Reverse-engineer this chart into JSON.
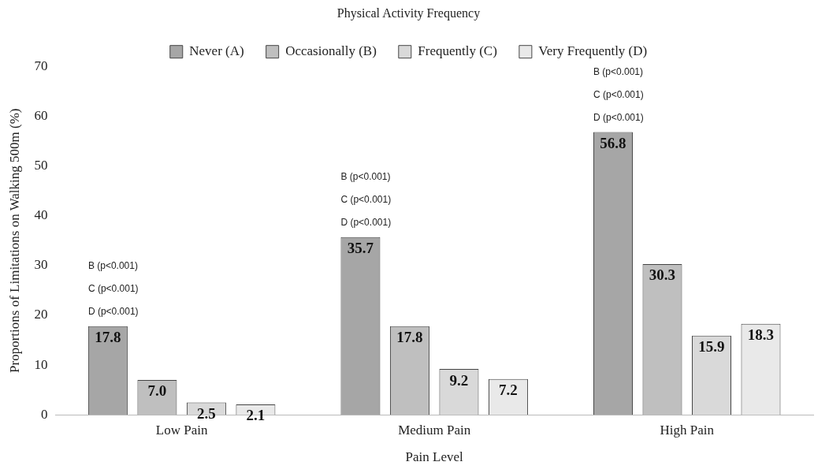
{
  "chart_data": {
    "type": "bar",
    "legend_title": "Physical Activity Frequency",
    "xlabel": "Pain Level",
    "ylabel": "Proportions of Limitations on Walking 500m (%)",
    "categories": [
      "Low Pain",
      "Medium Pain",
      "High Pain"
    ],
    "series": [
      {
        "name": "Never (A)",
        "color": "#a6a6a6",
        "values": [
          17.8,
          35.7,
          56.8
        ],
        "value_labels": [
          "17.8",
          "35.7",
          "56.8"
        ]
      },
      {
        "name": "Occasionally (B)",
        "color": "#bfbfbf",
        "values": [
          7.0,
          17.8,
          30.3
        ],
        "value_labels": [
          "7.0",
          "17.8",
          "30.3"
        ]
      },
      {
        "name": "Frequently (C)",
        "color": "#d9d9d9",
        "values": [
          2.5,
          9.2,
          15.9
        ],
        "value_labels": [
          "2.5",
          "9.2",
          "15.9"
        ]
      },
      {
        "name": "Very Frequently (D)",
        "color": "#e9e9e9",
        "values": [
          2.1,
          7.2,
          18.3
        ],
        "value_labels": [
          "2.1",
          "7.2",
          "18.3"
        ]
      }
    ],
    "ylim": [
      0,
      70
    ],
    "yticks": [
      0,
      10,
      20,
      30,
      40,
      50,
      60,
      70
    ],
    "grid": false,
    "legend": "top",
    "annotations": [
      "B (p<0.001)",
      "C (p<0.001)",
      "D (p<0.001)",
      "B (p<0.001)",
      "C (p<0.001)",
      "D (p<0.001)",
      "B (p<0.001)",
      "C (p<0.001)",
      "D (p<0.001)"
    ]
  }
}
